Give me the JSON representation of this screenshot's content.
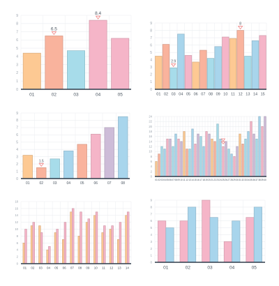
{
  "palette": {
    "orange": "#fdc993",
    "salmon": "#f9b39d",
    "cyan": "#a7dcea",
    "pink": "#f5b5c8",
    "purple": "#cdbcd8",
    "blue": "#a8d5ec",
    "gold": "#fbd5a1",
    "marker": "#f08080",
    "grid": "#ebedf0",
    "axis": "#2f3b4a"
  },
  "chart_data": [
    {
      "type": "bar",
      "categories": [
        "01",
        "02",
        "03",
        "04",
        "05"
      ],
      "values": [
        4.4,
        6.5,
        4.7,
        8.4,
        6.2
      ],
      "colors": [
        "orange",
        "salmon",
        "cyan",
        "pink",
        "pink"
      ],
      "labels": [
        null,
        "6.5",
        null,
        "8.4",
        null
      ],
      "yticks": [
        "0",
        "1",
        "2",
        "3",
        "4",
        "5",
        "6",
        "7",
        "8",
        "9"
      ],
      "ylim": [
        0,
        9
      ]
    },
    {
      "type": "bar",
      "categories": [
        "01",
        "02",
        "03",
        "04",
        "05",
        "06",
        "07",
        "08",
        "09",
        "10",
        "11",
        "12",
        "13",
        "14",
        "15"
      ],
      "values": [
        4.5,
        6.1,
        2.9,
        7.5,
        4.6,
        3.7,
        5.3,
        4.2,
        5.8,
        7.1,
        6.9,
        8,
        4.5,
        6.6,
        7.3
      ],
      "colors": [
        "orange",
        "salmon",
        "cyan",
        "blue",
        "pink",
        "orange",
        "salmon",
        "cyan",
        "blue",
        "pink",
        "orange",
        "salmon",
        "cyan",
        "blue",
        "pink"
      ],
      "labels": [
        null,
        null,
        "2.9",
        null,
        null,
        null,
        null,
        null,
        null,
        null,
        null,
        "8",
        null,
        null,
        null
      ],
      "yticks": [
        "0",
        "1",
        "2",
        "3",
        "4",
        "5",
        "6",
        "7",
        "8",
        "9"
      ],
      "ylim": [
        0,
        9
      ]
    },
    {
      "type": "bar",
      "categories": [
        "01",
        "02",
        "03",
        "04",
        "05",
        "06",
        "07",
        "08"
      ],
      "values": [
        3.2,
        1.5,
        2.7,
        3.8,
        4.7,
        6.1,
        7,
        8.5
      ],
      "colors": [
        "orange",
        "salmon",
        "cyan",
        "blue",
        "salmon",
        "pink",
        "purple",
        "blue"
      ],
      "labels": [
        null,
        "1.5",
        null,
        null,
        null,
        null,
        null,
        null
      ],
      "yticks": [
        "0",
        "1",
        "2",
        "3",
        "4",
        "5",
        "6",
        "7",
        "8",
        "9"
      ],
      "ylim": [
        0,
        9
      ]
    },
    {
      "type": "bar",
      "categories": [
        "01",
        "02",
        "03",
        "04",
        "05",
        "06",
        "07",
        "08",
        "09",
        "10",
        "11",
        "12",
        "13",
        "14",
        "15",
        "16",
        "17",
        "18",
        "19",
        "20",
        "21",
        "22",
        "23",
        "24",
        "25",
        "26",
        "27",
        "28",
        "29",
        "30",
        "31",
        "32",
        "33",
        "34",
        "35",
        "36",
        "37",
        "38",
        "39",
        "40"
      ],
      "values": [
        6,
        9,
        12,
        11,
        15,
        15,
        12,
        17,
        15,
        14,
        18,
        11,
        11,
        19,
        13,
        17,
        16,
        12,
        18,
        17,
        15,
        14,
        21,
        15,
        12,
        14,
        11,
        9,
        8,
        12,
        17,
        13,
        15,
        18,
        22,
        17,
        15,
        24,
        20,
        24
      ],
      "colors": [
        "orange",
        "salmon",
        "cyan",
        "blue",
        "pink",
        "purple",
        "cyan",
        "blue",
        "pink",
        "purple",
        "orange",
        "salmon",
        "cyan",
        "blue",
        "pink",
        "purple",
        "cyan",
        "blue",
        "pink",
        "purple",
        "orange",
        "salmon",
        "cyan",
        "blue",
        "pink",
        "purple",
        "cyan",
        "blue",
        "pink",
        "purple",
        "orange",
        "salmon",
        "cyan",
        "blue",
        "pink",
        "purple",
        "cyan",
        "blue",
        "pink",
        "purple"
      ],
      "marker_index": 24,
      "yticks": [
        "0",
        "2",
        "4",
        "6",
        "8",
        "10",
        "12",
        "14",
        "16",
        "18",
        "20",
        "22",
        "24"
      ],
      "ylim": [
        0,
        24
      ]
    },
    {
      "type": "bar",
      "categories": [
        "01",
        "02",
        "03",
        "04",
        "05",
        "06",
        "07",
        "08",
        "09",
        "10",
        "11",
        "12",
        "13",
        "14"
      ],
      "series": [
        {
          "values": [
            6,
            11,
            11,
            4,
            9,
            7,
            15,
            8,
            12,
            14,
            9,
            10,
            7,
            14
          ],
          "color": "orange"
        },
        {
          "values": [
            10,
            12,
            9,
            5,
            10,
            12,
            16,
            15,
            13,
            15,
            11,
            11,
            12,
            15
          ],
          "color": "pink"
        }
      ],
      "yticks": [
        "0",
        "2",
        "4",
        "6",
        "8",
        "10",
        "12",
        "14",
        "16",
        "18"
      ],
      "ylim": [
        0,
        18
      ]
    },
    {
      "type": "bar",
      "categories": [
        "01",
        "02",
        "03",
        "04",
        "05"
      ],
      "series": [
        {
          "values": [
            6,
            6,
            9,
            3,
            6.5
          ],
          "color": "pink"
        },
        {
          "values": [
            5,
            8,
            6.5,
            6,
            8
          ],
          "color": "blue"
        }
      ],
      "yticks": [
        "0",
        "1",
        "2",
        "3",
        "4",
        "5",
        "6",
        "7",
        "8",
        "9"
      ],
      "ylim": [
        0,
        9
      ]
    }
  ]
}
